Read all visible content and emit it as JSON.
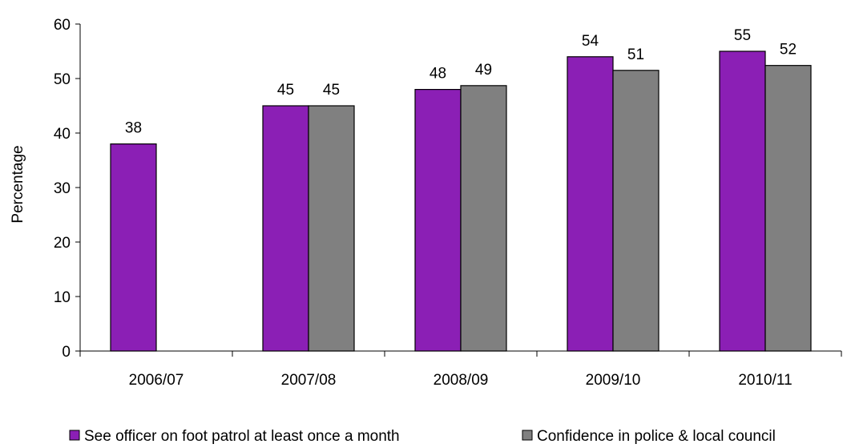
{
  "chart_data": {
    "type": "bar",
    "title": "",
    "xlabel": "",
    "ylabel": "Percentage",
    "ylim": [
      0,
      60
    ],
    "yticks": [
      0,
      10,
      20,
      30,
      40,
      50,
      60
    ],
    "categories": [
      "2006/07",
      "2007/08",
      "2008/09",
      "2009/10",
      "2010/11"
    ],
    "series": [
      {
        "name": "See officer on foot patrol at least once a month",
        "color": "#8B1FB5",
        "values": [
          38,
          45,
          48,
          54,
          55
        ],
        "labels": [
          "38",
          "45",
          "48",
          "54",
          "55"
        ]
      },
      {
        "name": "Confidence in police & local council",
        "color": "#808080",
        "values": [
          null,
          45,
          48.7,
          51.5,
          52.4
        ],
        "labels": [
          "",
          "45",
          "49",
          "51",
          "52"
        ]
      }
    ],
    "legend_position": "bottom",
    "grid": false
  }
}
